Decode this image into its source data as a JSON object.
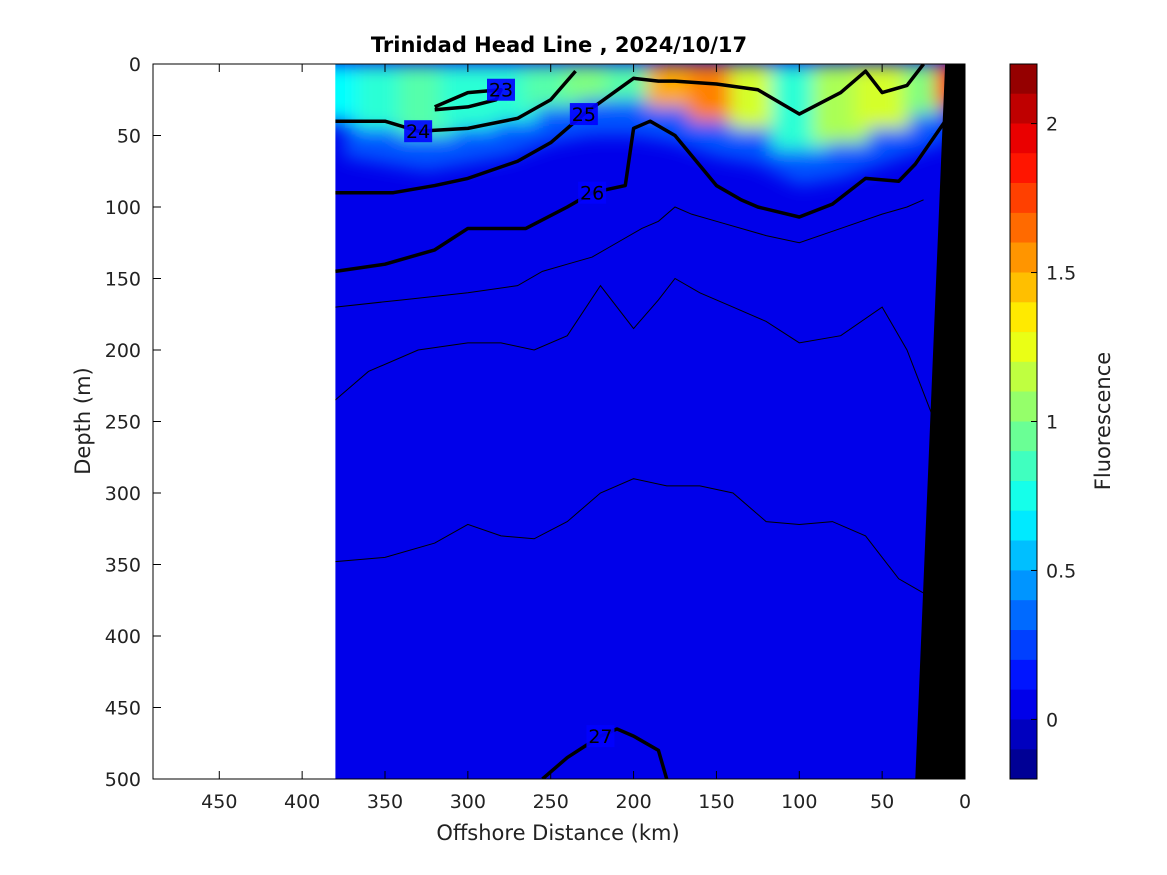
{
  "chart_data": {
    "type": "heatmap",
    "title": "Trinidad Head Line , 2024/10/17",
    "xlabel": "Offshore Distance (km)",
    "ylabel": "Depth (m)",
    "colorbar_label": "Fluorescence",
    "xlim": [
      490,
      0
    ],
    "ylim": [
      0,
      500
    ],
    "x_ticks": [
      450,
      400,
      350,
      300,
      250,
      200,
      150,
      100,
      50,
      0
    ],
    "y_ticks": [
      0,
      50,
      100,
      150,
      200,
      250,
      300,
      350,
      400,
      450,
      500
    ],
    "colorbar_ticks": [
      {
        "value": 0,
        "label": "0"
      },
      {
        "value": 0.5,
        "label": "0.5"
      },
      {
        "value": 1,
        "label": "1"
      },
      {
        "value": 1.5,
        "label": "1.5"
      },
      {
        "value": 2,
        "label": "2"
      }
    ],
    "colorbar_range": [
      -0.2,
      2.2
    ],
    "data_extent_km": [
      380,
      0
    ],
    "surface_fluorescence": {
      "x": [
        375,
        350,
        325,
        300,
        275,
        250,
        225,
        200,
        175,
        150,
        125,
        100,
        75,
        50,
        25,
        10
      ],
      "value": [
        0.7,
        0.8,
        0.9,
        0.8,
        0.8,
        0.9,
        1.0,
        0.9,
        1.5,
        1.6,
        1.2,
        0.8,
        1.1,
        1.2,
        1.0,
        1.9
      ],
      "layer_depth": [
        40,
        45,
        50,
        45,
        40,
        30,
        25,
        25,
        30,
        40,
        45,
        60,
        55,
        45,
        35,
        30
      ]
    },
    "density_contours": [
      {
        "label": "23",
        "x": [
          320,
          300,
          280,
          283,
          300,
          320
        ],
        "depth": [
          30,
          20,
          18,
          25,
          30,
          32
        ]
      },
      {
        "label": "24",
        "x": [
          380,
          350,
          330,
          300,
          270,
          250,
          235
        ],
        "depth": [
          40,
          40,
          47,
          45,
          38,
          25,
          5
        ]
      },
      {
        "label": "25",
        "x": [
          380,
          345,
          320,
          300,
          270,
          250,
          230,
          200,
          185,
          175,
          150,
          125,
          100,
          75,
          60,
          50,
          35,
          25
        ],
        "depth": [
          90,
          90,
          85,
          80,
          68,
          55,
          35,
          10,
          12,
          12,
          14,
          18,
          35,
          20,
          5,
          20,
          15,
          0
        ]
      },
      {
        "label": "26",
        "x": [
          380,
          350,
          320,
          300,
          265,
          240,
          225,
          205,
          200,
          190,
          175,
          150,
          135,
          125,
          100,
          80,
          60,
          40,
          30,
          12
        ],
        "depth": [
          145,
          140,
          130,
          115,
          115,
          100,
          90,
          85,
          45,
          40,
          50,
          85,
          95,
          100,
          107,
          98,
          80,
          82,
          70,
          40
        ]
      },
      {
        "label": "27",
        "x": [
          255,
          240,
          220,
          210,
          200,
          185,
          180
        ],
        "depth": [
          500,
          485,
          470,
          465,
          470,
          480,
          500
        ]
      }
    ],
    "thin_contours": [
      {
        "x": [
          380,
          340,
          300,
          270,
          255,
          240,
          225,
          210,
          195,
          185,
          175,
          165,
          150,
          120,
          100,
          75,
          50,
          35,
          25
        ],
        "depth": [
          170,
          165,
          160,
          155,
          145,
          140,
          135,
          125,
          115,
          110,
          100,
          105,
          110,
          120,
          125,
          115,
          105,
          100,
          95
        ]
      },
      {
        "x": [
          380,
          360,
          330,
          300,
          280,
          260,
          240,
          220,
          200,
          185,
          175,
          160,
          140,
          120,
          100,
          75,
          50,
          35,
          20
        ],
        "depth": [
          235,
          215,
          200,
          195,
          195,
          200,
          190,
          155,
          185,
          165,
          150,
          160,
          170,
          180,
          195,
          190,
          170,
          200,
          245
        ]
      },
      {
        "x": [
          380,
          350,
          320,
          300,
          280,
          260,
          240,
          220,
          200,
          180,
          160,
          140,
          120,
          100,
          80,
          60,
          40,
          25
        ],
        "depth": [
          348,
          345,
          335,
          322,
          330,
          332,
          320,
          300,
          290,
          295,
          295,
          300,
          320,
          322,
          320,
          330,
          360,
          370
        ]
      }
    ],
    "coast_label": "",
    "grid": false,
    "legend": "none"
  }
}
